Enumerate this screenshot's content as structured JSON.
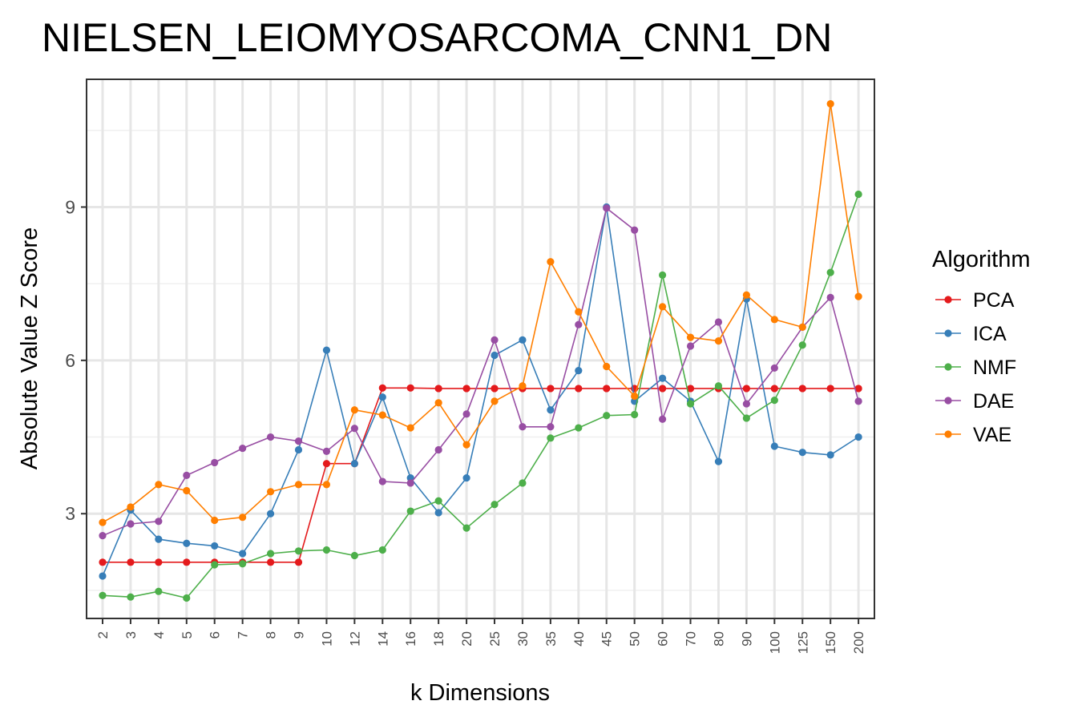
{
  "chart_data": {
    "type": "line",
    "title": "NIELSEN_LEIOMYOSARCOMA_CNN1_DN",
    "xlabel": "k Dimensions",
    "ylabel": "Absolute Value Z Score",
    "categories": [
      "2",
      "3",
      "4",
      "5",
      "6",
      "7",
      "8",
      "9",
      "10",
      "12",
      "14",
      "16",
      "18",
      "20",
      "25",
      "30",
      "35",
      "40",
      "45",
      "50",
      "60",
      "70",
      "80",
      "90",
      "100",
      "125",
      "150",
      "200"
    ],
    "y_ticks": [
      3,
      6,
      9
    ],
    "ylim": [
      0.95,
      11.5
    ],
    "grid": true,
    "legend_title": "Algorithm",
    "legend_position": "right",
    "series": [
      {
        "name": "PCA",
        "color": "#e41a1c",
        "values": [
          2.05,
          2.05,
          2.05,
          2.05,
          2.05,
          2.05,
          2.05,
          2.05,
          3.98,
          3.98,
          5.46,
          5.46,
          5.45,
          5.45,
          5.45,
          5.45,
          5.45,
          5.45,
          5.45,
          5.45,
          5.45,
          5.45,
          5.45,
          5.45,
          5.45,
          5.45,
          5.45,
          5.45
        ]
      },
      {
        "name": "ICA",
        "color": "#377eb8",
        "values": [
          1.78,
          3.07,
          2.5,
          2.42,
          2.37,
          2.22,
          3.0,
          4.25,
          6.2,
          3.98,
          5.28,
          3.7,
          3.02,
          3.7,
          6.1,
          6.4,
          5.03,
          5.8,
          9.0,
          5.2,
          5.65,
          5.2,
          4.02,
          7.2,
          4.32,
          4.2,
          4.15,
          4.5
        ]
      },
      {
        "name": "NMF",
        "color": "#4daf4a",
        "values": [
          1.4,
          1.37,
          1.48,
          1.35,
          2.0,
          2.02,
          2.22,
          2.27,
          2.29,
          2.18,
          2.29,
          3.05,
          3.25,
          2.72,
          3.18,
          3.6,
          4.48,
          4.68,
          4.92,
          4.94,
          7.67,
          5.15,
          5.5,
          4.87,
          5.22,
          6.3,
          7.72,
          9.25
        ]
      },
      {
        "name": "DAE",
        "color": "#984ea3",
        "values": [
          2.57,
          2.8,
          2.85,
          3.75,
          4.0,
          4.28,
          4.5,
          4.42,
          4.22,
          4.67,
          3.63,
          3.6,
          4.25,
          4.95,
          6.4,
          4.7,
          4.7,
          6.7,
          8.98,
          8.55,
          4.85,
          6.28,
          6.75,
          5.15,
          5.85,
          6.65,
          7.23,
          5.2
        ]
      },
      {
        "name": "VAE",
        "color": "#ff7f00",
        "values": [
          2.83,
          3.13,
          3.57,
          3.45,
          2.87,
          2.93,
          3.43,
          3.57,
          3.57,
          5.03,
          4.93,
          4.68,
          5.17,
          4.35,
          5.2,
          5.5,
          7.93,
          6.95,
          5.88,
          5.3,
          7.05,
          6.45,
          6.38,
          7.28,
          6.8,
          6.65,
          11.02,
          7.25
        ]
      }
    ]
  }
}
